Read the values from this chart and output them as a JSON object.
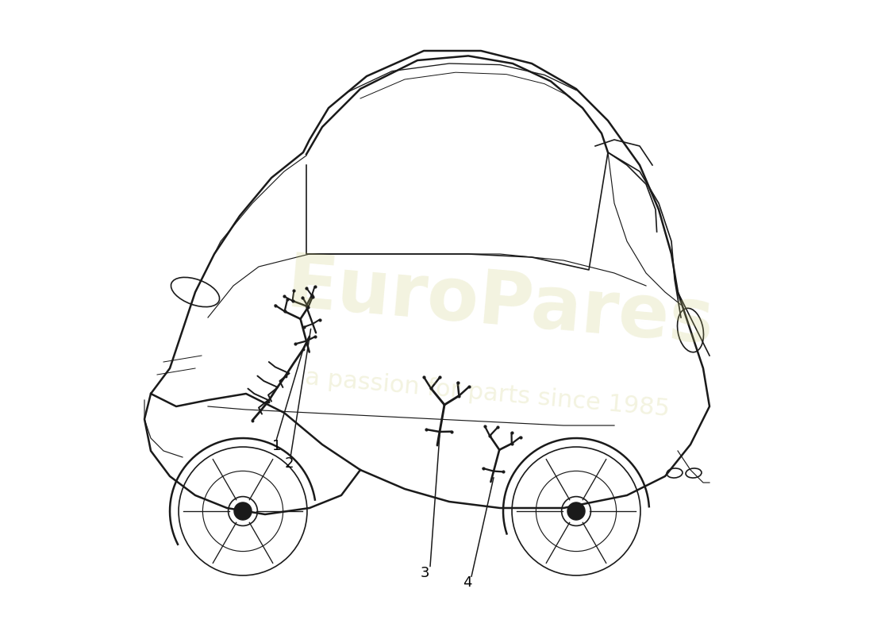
{
  "background_color": "#ffffff",
  "line_color": "#1a1a1a",
  "watermark_text1": "EuroPares",
  "watermark_text2": "a passion for parts since 1985",
  "part_numbers": [
    "1",
    "2",
    "3",
    "4"
  ]
}
